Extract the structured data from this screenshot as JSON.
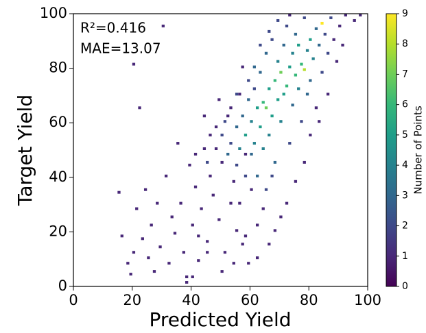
{
  "chart_data": {
    "type": "hist2d",
    "xlabel": "Predicted Yield",
    "ylabel": "Target Yield",
    "annotations": [
      "R²=0.416",
      "MAE=13.07"
    ],
    "xlim": [
      0,
      100
    ],
    "ylim": [
      0,
      100
    ],
    "xticks": [
      0,
      20,
      40,
      60,
      80,
      100
    ],
    "yticks": [
      0,
      20,
      40,
      60,
      80,
      100
    ],
    "colormap": "viridis",
    "clim": [
      0,
      9
    ],
    "cticks": [
      0,
      1,
      2,
      3,
      4,
      5,
      6,
      7,
      8,
      9
    ],
    "colorbar_label": "Number of Points",
    "x": [
      15,
      16,
      18,
      19,
      20,
      21,
      22,
      23,
      24,
      25,
      26,
      27,
      28,
      29,
      30,
      31,
      32,
      33,
      34,
      35,
      36,
      37,
      38,
      39,
      40,
      41,
      42,
      43,
      44,
      45,
      46,
      47,
      48,
      49,
      50,
      51,
      52,
      53,
      54,
      55,
      56,
      57,
      58,
      59,
      45,
      48,
      50,
      52,
      53,
      55,
      55,
      56,
      57,
      58,
      58,
      59,
      60,
      60,
      61,
      61,
      62,
      62,
      63,
      63,
      64,
      64,
      65,
      65,
      66,
      66,
      67,
      67,
      68,
      68,
      69,
      69,
      70,
      70,
      71,
      71,
      72,
      72,
      73,
      73,
      74,
      74,
      75,
      75,
      76,
      76,
      77,
      77,
      78,
      78,
      79,
      79,
      80,
      80,
      81,
      82,
      82,
      83,
      84,
      84,
      85,
      86,
      87,
      88,
      89,
      90,
      92,
      95,
      97,
      91,
      86,
      83,
      80,
      78,
      75,
      72,
      70,
      68,
      66,
      64,
      62,
      60,
      58,
      56,
      65,
      67,
      62,
      54,
      50,
      45,
      42,
      40,
      38,
      61,
      63,
      66,
      69,
      73,
      59,
      57,
      55,
      53,
      51,
      49,
      46,
      44,
      41,
      20
    ],
    "y": [
      34,
      18,
      8,
      4,
      12,
      28,
      65,
      17,
      35,
      10,
      22,
      5,
      30,
      14,
      95,
      40,
      8,
      25,
      19,
      52,
      30,
      12,
      3,
      44,
      22,
      36,
      9,
      28,
      50,
      16,
      40,
      33,
      58,
      24,
      45,
      12,
      62,
      30,
      38,
      20,
      70,
      15,
      48,
      8,
      45,
      50,
      55,
      48,
      52,
      44,
      58,
      50,
      62,
      55,
      40,
      68,
      60,
      48,
      72,
      52,
      65,
      40,
      58,
      78,
      67,
      50,
      65,
      85,
      72,
      55,
      90,
      62,
      75,
      45,
      82,
      68,
      78,
      60,
      88,
      70,
      73,
      95,
      80,
      52,
      85,
      66,
      77,
      92,
      72,
      88,
      81,
      60,
      79,
      98,
      86,
      70,
      90,
      75,
      83,
      94,
      65,
      88,
      96,
      78,
      92,
      85,
      98,
      90,
      82,
      95,
      99,
      97,
      99,
      88,
      70,
      60,
      55,
      45,
      38,
      30,
      25,
      20,
      15,
      28,
      22,
      35,
      18,
      30,
      35,
      40,
      10,
      8,
      5,
      12,
      18,
      3,
      1,
      80,
      88,
      93,
      97,
      99,
      75,
      80,
      70,
      65,
      60,
      68,
      55,
      62,
      48,
      81
    ],
    "values": [
      1,
      1,
      1,
      1,
      1,
      1,
      1,
      1,
      1,
      1,
      1,
      1,
      1,
      1,
      1,
      1,
      1,
      1,
      1,
      1,
      1,
      1,
      1,
      1,
      1,
      1,
      1,
      1,
      1,
      1,
      1,
      1,
      1,
      1,
      1,
      1,
      1,
      1,
      1,
      1,
      1,
      1,
      1,
      1,
      2,
      1,
      2,
      3,
      2,
      2,
      3,
      4,
      3,
      5,
      2,
      3,
      4,
      3,
      2,
      4,
      5,
      3,
      5,
      3,
      6,
      4,
      7,
      3,
      5,
      4,
      2,
      5,
      6,
      3,
      4,
      5,
      7,
      4,
      3,
      5,
      6,
      2,
      5,
      2,
      4,
      3,
      6,
      3,
      4,
      5,
      6,
      2,
      8,
      2,
      4,
      3,
      5,
      3,
      4,
      3,
      1,
      3,
      9,
      2,
      2,
      2,
      2,
      1,
      1,
      1,
      1,
      1,
      1,
      1,
      1,
      1,
      1,
      1,
      1,
      1,
      1,
      1,
      1,
      1,
      1,
      1,
      1,
      1,
      2,
      2,
      1,
      1,
      1,
      1,
      1,
      1,
      1,
      3,
      2,
      2,
      2,
      1,
      2,
      1,
      2,
      1,
      2,
      1,
      1,
      1,
      1,
      1
    ]
  }
}
